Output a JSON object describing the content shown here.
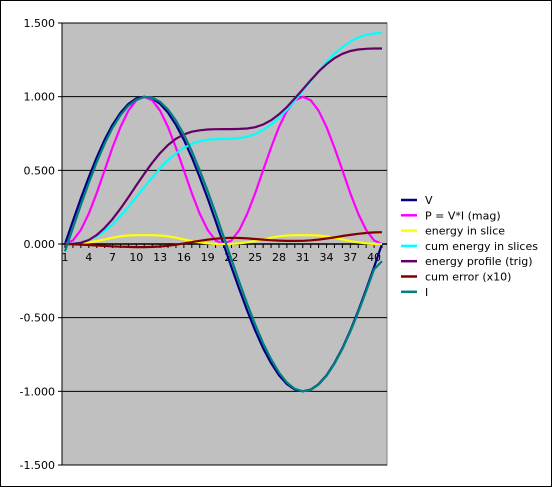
{
  "chart_data": {
    "type": "line",
    "title": "",
    "xlabel": "",
    "ylabel": "",
    "x": [
      1,
      2,
      3,
      4,
      5,
      6,
      7,
      8,
      9,
      10,
      11,
      12,
      13,
      14,
      15,
      16,
      17,
      18,
      19,
      20,
      21,
      22,
      23,
      24,
      25,
      26,
      27,
      28,
      29,
      30,
      31,
      32,
      33,
      34,
      35,
      36,
      37,
      38,
      39,
      40,
      41
    ],
    "x_tick_labels": [
      "1",
      "4",
      "7",
      "10",
      "13",
      "16",
      "19",
      "22",
      "25",
      "28",
      "31",
      "34",
      "37",
      "40"
    ],
    "y_tick_labels": [
      "1.500",
      "1.000",
      "0.500",
      "0.000",
      "-0.500",
      "-1.000",
      "-1.500"
    ],
    "y_ticks": [
      1.5,
      1.0,
      0.5,
      0.0,
      -0.5,
      -1.0,
      -1.5
    ],
    "ylim": [
      -1.5,
      1.5
    ],
    "grid": "horizontal",
    "plot_background": "#c0c0c0",
    "legend_position": "right",
    "series": [
      {
        "name": "V",
        "color": "#000080",
        "values": [
          0.0,
          0.156,
          0.309,
          0.454,
          0.588,
          0.707,
          0.809,
          0.891,
          0.951,
          0.988,
          1.0,
          0.988,
          0.951,
          0.891,
          0.809,
          0.707,
          0.588,
          0.454,
          0.309,
          0.156,
          0.0,
          -0.156,
          -0.309,
          -0.454,
          -0.588,
          -0.707,
          -0.809,
          -0.891,
          -0.951,
          -0.988,
          -1.0,
          -0.988,
          -0.951,
          -0.891,
          -0.809,
          -0.707,
          -0.588,
          -0.454,
          -0.309,
          -0.156,
          0.0
        ]
      },
      {
        "name": "P = V*I (mag)",
        "color": "#ff00ff",
        "values": [
          0.0,
          0.024,
          0.095,
          0.206,
          0.345,
          0.5,
          0.655,
          0.794,
          0.905,
          0.976,
          1.0,
          0.976,
          0.905,
          0.794,
          0.655,
          0.5,
          0.345,
          0.206,
          0.095,
          0.024,
          0.0,
          0.024,
          0.095,
          0.206,
          0.345,
          0.5,
          0.655,
          0.794,
          0.905,
          0.976,
          1.0,
          0.976,
          0.905,
          0.794,
          0.655,
          0.5,
          0.345,
          0.206,
          0.095,
          0.024,
          0.0
        ]
      },
      {
        "name": "energy in slice",
        "color": "#ffff00",
        "values": [
          0.0,
          0.001,
          0.005,
          0.011,
          0.02,
          0.031,
          0.043,
          0.052,
          0.058,
          0.06,
          0.06,
          0.06,
          0.058,
          0.052,
          0.043,
          0.031,
          0.02,
          0.011,
          0.005,
          0.001,
          0.0,
          0.001,
          0.005,
          0.011,
          0.02,
          0.031,
          0.043,
          0.052,
          0.058,
          0.06,
          0.06,
          0.06,
          0.058,
          0.052,
          0.043,
          0.031,
          0.02,
          0.011,
          0.005,
          0.001,
          0.0
        ]
      },
      {
        "name": "cum energy in slices",
        "color": "#00ffff",
        "values": [
          0.0,
          0.002,
          0.01,
          0.026,
          0.052,
          0.088,
          0.134,
          0.19,
          0.252,
          0.318,
          0.385,
          0.451,
          0.514,
          0.569,
          0.615,
          0.652,
          0.68,
          0.698,
          0.708,
          0.712,
          0.713,
          0.714,
          0.718,
          0.728,
          0.746,
          0.774,
          0.811,
          0.857,
          0.912,
          0.974,
          1.04,
          1.107,
          1.173,
          1.236,
          1.29,
          1.336,
          1.373,
          1.401,
          1.419,
          1.429,
          1.433
        ]
      },
      {
        "name": "energy profile (trig)",
        "color": "#660066",
        "values": [
          0.0,
          0.001,
          0.008,
          0.027,
          0.061,
          0.109,
          0.169,
          0.24,
          0.317,
          0.398,
          0.477,
          0.551,
          0.617,
          0.672,
          0.714,
          0.744,
          0.762,
          0.772,
          0.777,
          0.779,
          0.78,
          0.78,
          0.781,
          0.784,
          0.793,
          0.811,
          0.84,
          0.88,
          0.93,
          0.988,
          1.05,
          1.112,
          1.17,
          1.22,
          1.261,
          1.291,
          1.31,
          1.32,
          1.325,
          1.327,
          1.327
        ]
      },
      {
        "name": "cum error (x10)",
        "color": "#800000",
        "values": [
          0.0,
          -0.002,
          -0.004,
          -0.007,
          -0.01,
          -0.013,
          -0.016,
          -0.018,
          -0.02,
          -0.021,
          -0.021,
          -0.02,
          -0.017,
          -0.012,
          -0.005,
          0.004,
          0.013,
          0.022,
          0.03,
          0.036,
          0.04,
          0.042,
          0.041,
          0.038,
          0.034,
          0.03,
          0.026,
          0.023,
          0.021,
          0.021,
          0.022,
          0.025,
          0.03,
          0.037,
          0.045,
          0.054,
          0.062,
          0.069,
          0.075,
          0.079,
          0.08
        ]
      },
      {
        "name": "I",
        "color": "#008080",
        "values": [
          -0.05,
          0.108,
          0.264,
          0.414,
          0.555,
          0.68,
          0.788,
          0.874,
          0.939,
          0.979,
          0.998,
          0.994,
          0.965,
          0.913,
          0.838,
          0.743,
          0.63,
          0.5,
          0.359,
          0.209,
          0.053,
          -0.104,
          -0.259,
          -0.408,
          -0.547,
          -0.673,
          -0.782,
          -0.872,
          -0.94,
          -0.983,
          -1.0,
          -0.99,
          -0.954,
          -0.895,
          -0.814,
          -0.713,
          -0.595,
          -0.464,
          -0.322,
          -0.172,
          -0.117
        ]
      }
    ]
  }
}
